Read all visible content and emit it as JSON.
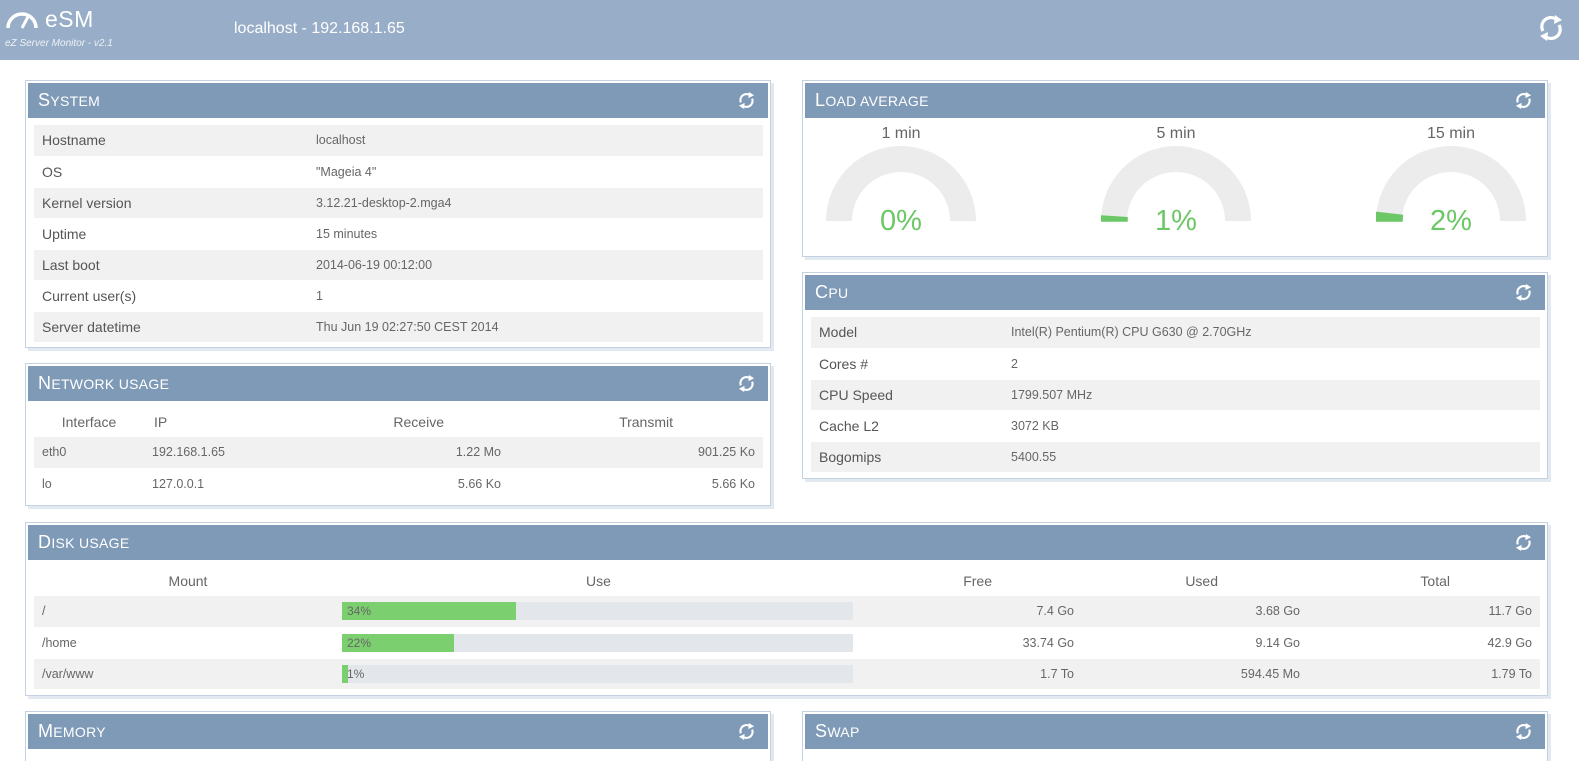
{
  "header": {
    "app_name": "eSM",
    "subtitle": "eZ Server Monitor - v2.1",
    "host": "localhost - 192.168.1.65"
  },
  "system": {
    "title_first": "S",
    "title_rest": "YSTEM",
    "rows": [
      {
        "key": "Hostname",
        "value": "localhost"
      },
      {
        "key": "OS",
        "value": "\"Mageia 4\""
      },
      {
        "key": "Kernel version",
        "value": "3.12.21-desktop-2.mga4"
      },
      {
        "key": "Uptime",
        "value": "15 minutes"
      },
      {
        "key": "Last boot",
        "value": "2014-06-19 00:12:00"
      },
      {
        "key": "Current user(s)",
        "value": "1"
      },
      {
        "key": "Server datetime",
        "value": "Thu Jun 19 02:27:50 CEST 2014"
      }
    ]
  },
  "load": {
    "title_first": "L",
    "title_rest": "OAD AVERAGE",
    "gauges": [
      {
        "label": "1 min",
        "value": "0%",
        "fraction": 0.0
      },
      {
        "label": "5 min",
        "value": "1%",
        "fraction": 0.01
      },
      {
        "label": "15 min",
        "value": "2%",
        "fraction": 0.02
      }
    ]
  },
  "network": {
    "title_first": "N",
    "title_rest": "ETWORK USAGE",
    "headers": [
      "Interface",
      "IP",
      "Receive",
      "Transmit"
    ],
    "rows": [
      {
        "iface": "eth0",
        "ip": "192.168.1.65",
        "rx": "1.22 Mo",
        "tx": "901.25 Ko"
      },
      {
        "iface": "lo",
        "ip": "127.0.0.1",
        "rx": "5.66 Ko",
        "tx": "5.66 Ko"
      }
    ]
  },
  "cpu": {
    "title_first": "C",
    "title_rest": "PU",
    "rows": [
      {
        "key": "Model",
        "value": "Intel(R) Pentium(R) CPU G630 @ 2.70GHz"
      },
      {
        "key": "Cores #",
        "value": "2"
      },
      {
        "key": "CPU Speed",
        "value": "1799.507 MHz"
      },
      {
        "key": "Cache L2",
        "value": "3072 KB"
      },
      {
        "key": "Bogomips",
        "value": "5400.55"
      }
    ]
  },
  "disk": {
    "title_first": "D",
    "title_rest": "ISK USAGE",
    "headers": [
      "Mount",
      "Use",
      "Free",
      "Used",
      "Total"
    ],
    "rows": [
      {
        "mount": "/",
        "use": "34%",
        "use_fraction": 0.34,
        "free": "7.4 Go",
        "used": "3.68 Go",
        "total": "11.7 Go"
      },
      {
        "mount": "/home",
        "use": "22%",
        "use_fraction": 0.22,
        "free": "33.74 Go",
        "used": "9.14 Go",
        "total": "42.9 Go"
      },
      {
        "mount": "/var/www",
        "use": "1%",
        "use_fraction": 0.01,
        "free": "1.7 To",
        "used": "594.45 Mo",
        "total": "1.79 To"
      }
    ]
  },
  "memory": {
    "title_first": "M",
    "title_rest": "EMORY"
  },
  "swap": {
    "title_first": "S",
    "title_rest": "WAP"
  },
  "colors": {
    "header": "#98adc7",
    "panel_head": "#7f9ab7",
    "accent_green": "#6cc766",
    "bar_green": "#7bcf6f"
  },
  "icons": {
    "reload": "reload-icon",
    "logo": "speedometer-icon"
  }
}
